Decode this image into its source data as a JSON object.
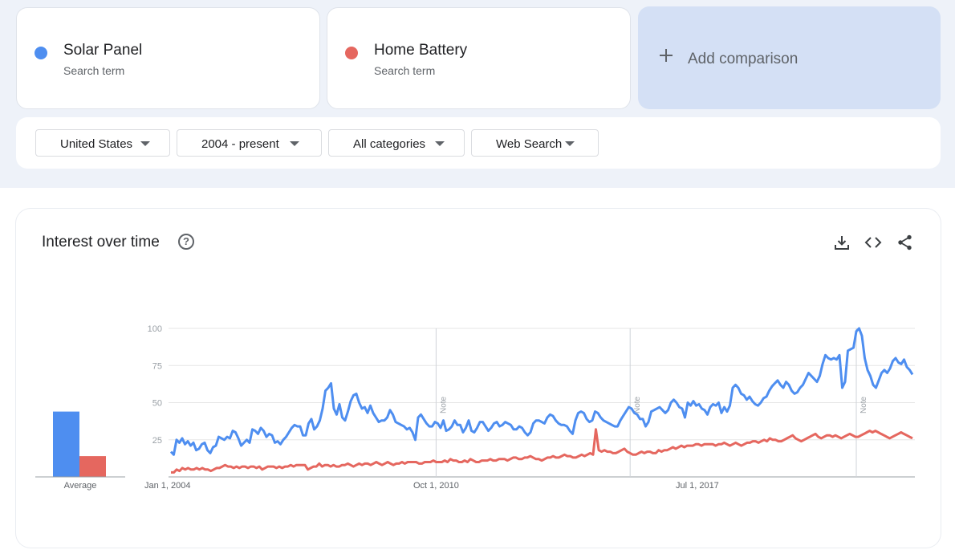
{
  "terms": [
    {
      "name": "Solar Panel",
      "sub": "Search term",
      "color": "#4e8ef0"
    },
    {
      "name": "Home Battery",
      "sub": "Search term",
      "color": "#e5675f"
    }
  ],
  "add_comparison": {
    "label": "Add comparison",
    "icon": "plus-icon"
  },
  "filters": {
    "region": "United States",
    "time": "2004 - present",
    "category": "All categories",
    "search_type": "Web Search"
  },
  "panel": {
    "title": "Interest over time",
    "icons": [
      "help-icon",
      "download-icon",
      "embed-icon",
      "share-icon"
    ]
  },
  "chart_data": {
    "type": "line",
    "title": "Interest over time",
    "ylim": [
      0,
      100
    ],
    "yticks": [
      25,
      50,
      75,
      100
    ],
    "x_tick_labels": [
      "Jan 1, 2004",
      "Oct 1, 2010",
      "Jul 1, 2017"
    ],
    "notes": [
      "Note",
      "Note",
      "Note"
    ],
    "grid": true,
    "series": [
      {
        "name": "Solar Panel",
        "color": "#4e8ef0",
        "values": [
          17,
          15,
          25,
          23,
          26,
          22,
          24,
          21,
          23,
          18,
          19,
          22,
          23,
          18,
          16,
          20,
          21,
          27,
          26,
          25,
          27,
          26,
          31,
          30,
          26,
          21,
          23,
          25,
          23,
          32,
          31,
          29,
          33,
          31,
          27,
          29,
          28,
          23,
          24,
          22,
          25,
          27,
          30,
          33,
          35,
          34,
          34,
          28,
          28,
          36,
          39,
          32,
          34,
          38,
          46,
          58,
          60,
          63,
          46,
          42,
          49,
          40,
          38,
          44,
          51,
          55,
          56,
          50,
          46,
          47,
          43,
          48,
          43,
          40,
          37,
          38,
          38,
          40,
          45,
          42,
          37,
          36,
          35,
          34,
          32,
          33,
          30,
          25,
          40,
          42,
          39,
          36,
          34,
          34,
          37,
          36,
          33,
          38,
          31,
          32,
          34,
          38,
          35,
          35,
          30,
          33,
          38,
          31,
          30,
          33,
          37,
          37,
          34,
          31,
          33,
          36,
          37,
          34,
          35,
          37,
          36,
          35,
          32,
          32,
          34,
          33,
          30,
          28,
          30,
          36,
          38,
          38,
          37,
          36,
          40,
          42,
          41,
          38,
          36,
          35,
          35,
          34,
          31,
          29,
          38,
          43,
          44,
          43,
          39,
          37,
          38,
          44,
          43,
          40,
          38,
          37,
          36,
          35,
          34,
          34,
          38,
          41,
          44,
          47,
          46,
          43,
          42,
          39,
          39,
          34,
          37,
          44,
          45,
          46,
          47,
          45,
          43,
          45,
          50,
          52,
          50,
          47,
          46,
          40,
          50,
          48,
          51,
          48,
          49,
          46,
          45,
          42,
          47,
          49,
          48,
          50,
          43,
          47,
          44,
          48,
          60,
          62,
          60,
          56,
          55,
          52,
          54,
          51,
          49,
          48,
          50,
          53,
          54,
          58,
          61,
          63,
          65,
          62,
          60,
          64,
          62,
          58,
          56,
          57,
          60,
          62,
          66,
          70,
          68,
          66,
          64,
          68,
          76,
          82,
          80,
          79,
          80,
          79,
          82,
          60,
          64,
          85,
          86,
          87,
          98,
          100,
          95,
          80,
          72,
          68,
          62,
          60,
          65,
          70,
          72,
          70,
          73,
          78,
          80,
          77,
          76,
          79,
          74,
          72,
          69
        ]
      },
      {
        "name": "Home Battery",
        "color": "#e5675f",
        "values": [
          3,
          3,
          5,
          4,
          6,
          5,
          6,
          5,
          5,
          6,
          5,
          6,
          5,
          5,
          4,
          5,
          6,
          6,
          7,
          8,
          7,
          7,
          6,
          7,
          6,
          7,
          7,
          6,
          7,
          7,
          6,
          7,
          5,
          6,
          7,
          7,
          7,
          6,
          7,
          6,
          7,
          7,
          8,
          7,
          8,
          8,
          8,
          8,
          5,
          6,
          7,
          7,
          9,
          7,
          8,
          8,
          7,
          8,
          7,
          7,
          8,
          8,
          9,
          8,
          7,
          8,
          9,
          8,
          9,
          9,
          8,
          9,
          10,
          9,
          8,
          9,
          10,
          9,
          8,
          9,
          9,
          10,
          9,
          10,
          10,
          10,
          10,
          9,
          9,
          10,
          10,
          10,
          11,
          10,
          10,
          10,
          11,
          10,
          12,
          11,
          11,
          10,
          10,
          11,
          10,
          12,
          11,
          10,
          10,
          11,
          11,
          11,
          12,
          11,
          11,
          12,
          12,
          12,
          11,
          12,
          13,
          13,
          12,
          12,
          13,
          13,
          14,
          13,
          12,
          12,
          11,
          12,
          13,
          13,
          14,
          13,
          13,
          14,
          15,
          14,
          14,
          13,
          13,
          14,
          15,
          14,
          15,
          16,
          15,
          32,
          18,
          17,
          18,
          17,
          17,
          16,
          16,
          17,
          18,
          19,
          17,
          16,
          15,
          15,
          16,
          17,
          16,
          17,
          17,
          16,
          16,
          18,
          17,
          18,
          18,
          19,
          20,
          19,
          20,
          21,
          20,
          21,
          21,
          21,
          22,
          22,
          21,
          22,
          22,
          22,
          22,
          21,
          22,
          22,
          23,
          22,
          21,
          22,
          23,
          22,
          21,
          22,
          23,
          23,
          24,
          24,
          23,
          24,
          25,
          24,
          26,
          25,
          25,
          24,
          24,
          25,
          26,
          27,
          28,
          26,
          25,
          24,
          25,
          26,
          27,
          28,
          29,
          27,
          26,
          27,
          28,
          28,
          27,
          28,
          27,
          26,
          27,
          28,
          29,
          28,
          27,
          27,
          28,
          29,
          30,
          31,
          30,
          31,
          30,
          29,
          28,
          27,
          26,
          27,
          28,
          29,
          30,
          29,
          28,
          27,
          26
        ]
      }
    ]
  },
  "average": {
    "label": "Average",
    "values": [
      44,
      14
    ]
  }
}
